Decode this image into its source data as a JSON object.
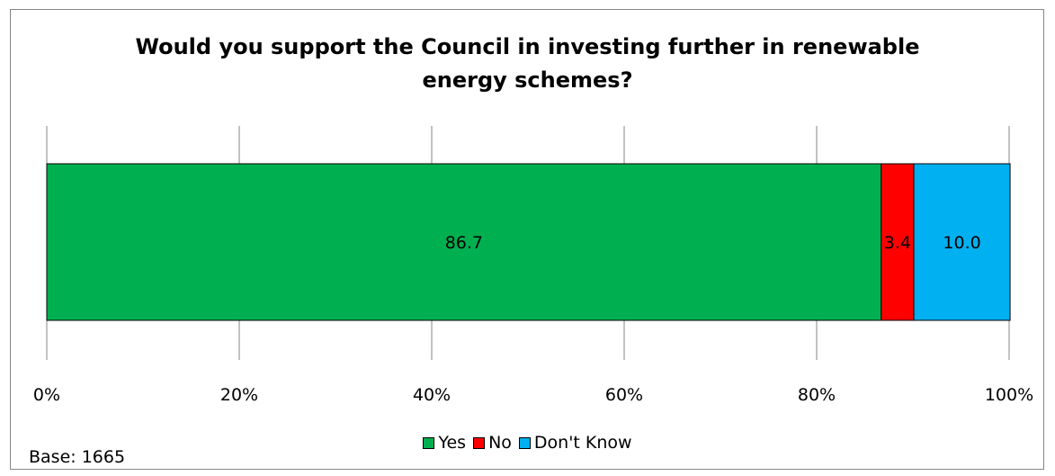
{
  "chart_data": {
    "type": "bar",
    "orientation": "horizontal",
    "stacked": "100%",
    "title": "Would you support the Council in investing further in renewable energy schemes?",
    "title_lines": [
      "Would you support the Council in investing further in renewable",
      "energy schemes?"
    ],
    "categories": [
      ""
    ],
    "series": [
      {
        "name": "Yes",
        "values": [
          86.7
        ],
        "label": "86.7",
        "color": "#00B050"
      },
      {
        "name": "No",
        "values": [
          3.4
        ],
        "label": "3.4",
        "color": "#FF0000"
      },
      {
        "name": "Don't Know",
        "values": [
          10.0
        ],
        "label": "10.0",
        "color": "#00B0F0"
      }
    ],
    "xlim": [
      0,
      100
    ],
    "xticks": [
      "0%",
      "20%",
      "40%",
      "60%",
      "80%",
      "100%"
    ],
    "grid": true,
    "legend_position": "bottom",
    "note": "Base: 1665"
  }
}
